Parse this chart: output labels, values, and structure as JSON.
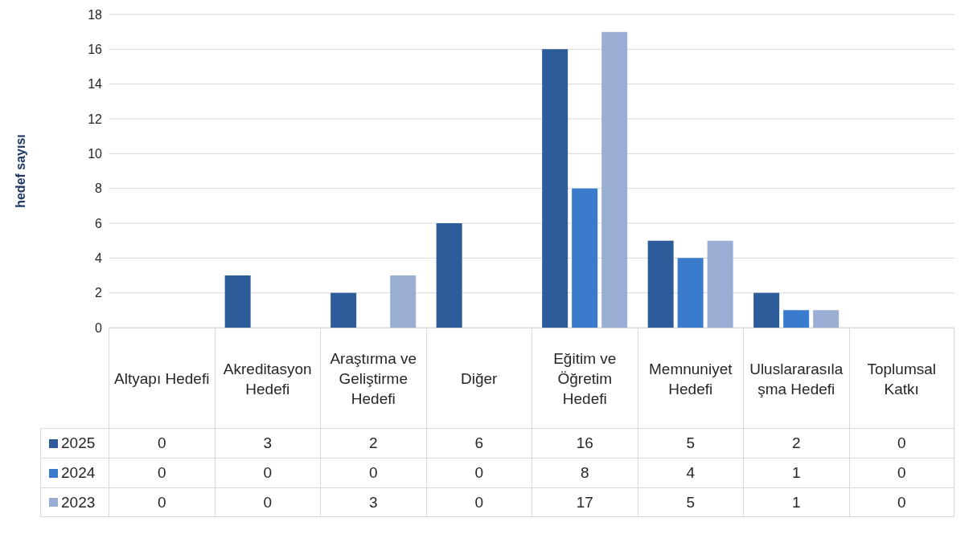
{
  "chart_data": {
    "type": "bar",
    "ylabel": "hedef sayısı",
    "categories": [
      "Altyapı Hedefi",
      "Akreditasyon Hedefi",
      "Araştırma ve Geliştirme Hedefi",
      "Diğer",
      "Eğitim ve Öğretim Hedefi",
      "Memnuniyet Hedefi",
      "Uluslararasılaşma Hedefi",
      "Toplumsal Katkı"
    ],
    "series": [
      {
        "name": "2025",
        "color": "#2d5c9b",
        "values": [
          0,
          3,
          2,
          6,
          16,
          5,
          2,
          0
        ]
      },
      {
        "name": "2024",
        "color": "#3a7bcc",
        "values": [
          0,
          0,
          0,
          0,
          8,
          4,
          1,
          0
        ]
      },
      {
        "name": "2023",
        "color": "#9aaed4",
        "values": [
          0,
          0,
          3,
          0,
          17,
          5,
          1,
          0
        ]
      }
    ],
    "ylim": [
      0,
      18
    ],
    "yticks": [
      0,
      2,
      4,
      6,
      8,
      10,
      12,
      14,
      16,
      18
    ],
    "grid": "y",
    "legend": "bottom left",
    "data_labels": true
  }
}
